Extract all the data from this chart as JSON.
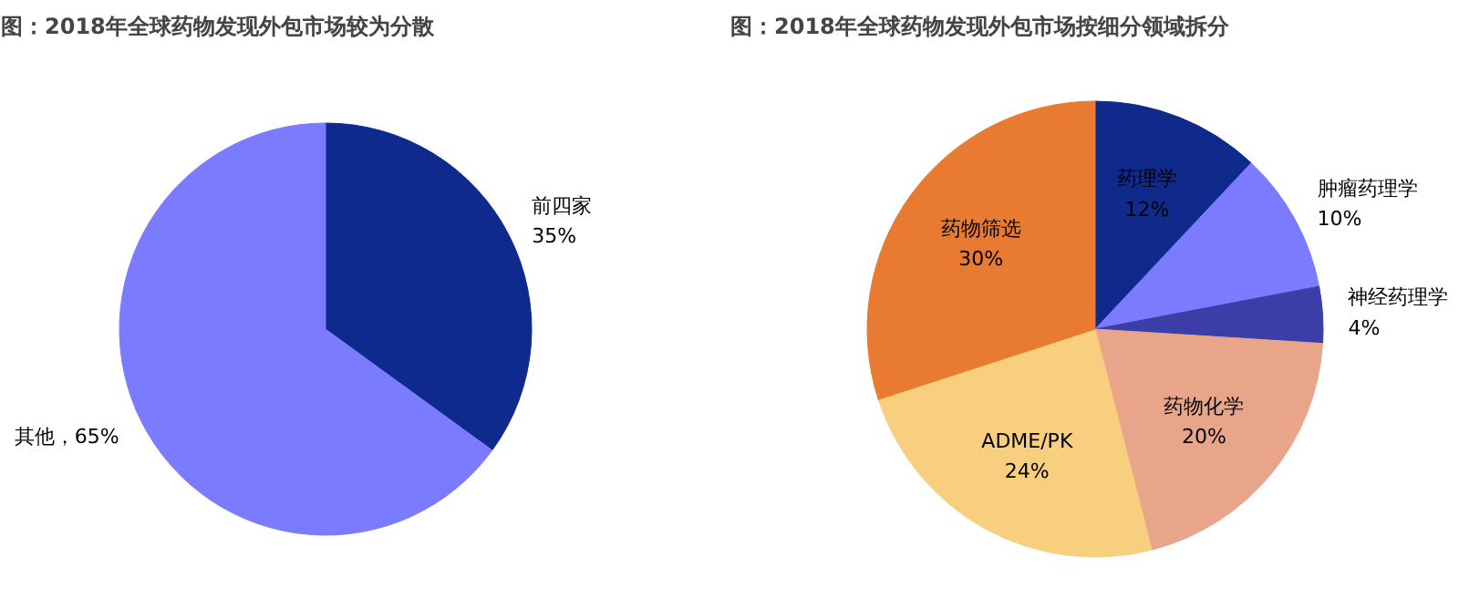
{
  "chart_data": [
    {
      "type": "pie",
      "title": "图：2018年全球药物发现外包市场较为分散",
      "categories": [
        "前四家",
        "其他"
      ],
      "values": [
        35,
        65
      ],
      "colors": [
        "#0d2a8c",
        "#7b7bff"
      ],
      "value_labels": [
        "35%",
        "65%"
      ]
    },
    {
      "type": "pie",
      "title": "图：2018年全球药物发现外包市场按细分领域拆分",
      "categories": [
        "药理学",
        "肿瘤药理学",
        "神经药理学",
        "药物化学",
        "ADME/PK",
        "药物筛选"
      ],
      "values": [
        12,
        10,
        4,
        20,
        24,
        30
      ],
      "colors": [
        "#102a8c",
        "#7b7bff",
        "#3b3ea6",
        "#e9a58a",
        "#f8cf7f",
        "#e87b31"
      ],
      "value_labels": [
        "12%",
        "10%",
        "4%",
        "20%",
        "24%",
        "30%"
      ]
    }
  ]
}
